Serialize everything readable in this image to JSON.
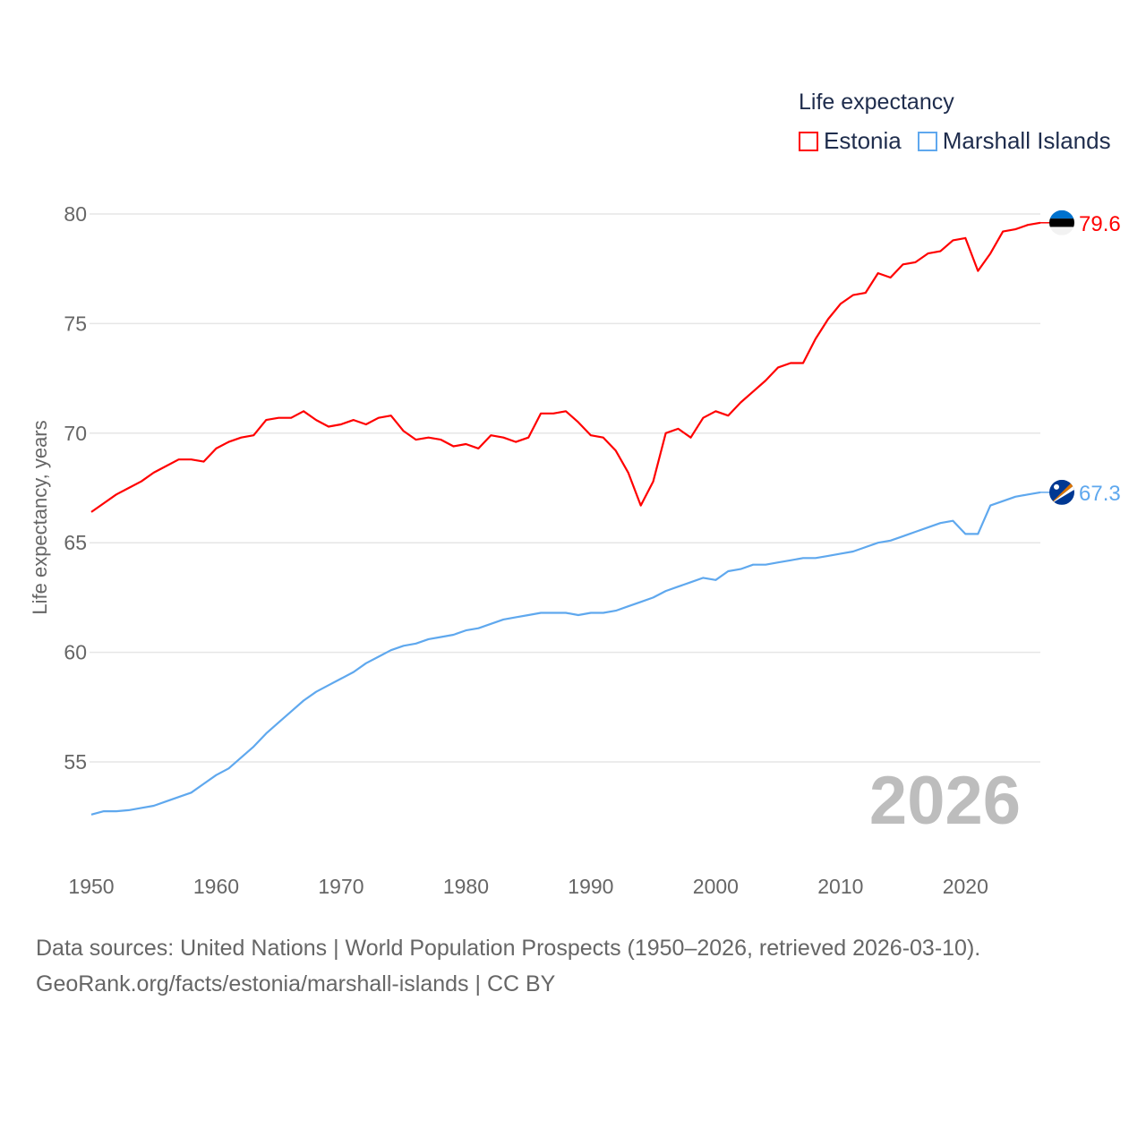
{
  "chart_data": {
    "type": "line",
    "title": "Life expectancy",
    "xlabel": "",
    "ylabel": "Life expectancy, years",
    "xlim": [
      1950,
      2026
    ],
    "ylim": [
      52.5,
      80
    ],
    "grid": true,
    "legend_position": "top-right",
    "x_ticks": [
      "1950",
      "1960",
      "1970",
      "1980",
      "1990",
      "2000",
      "2010",
      "2020"
    ],
    "y_ticks": [
      "55",
      "60",
      "65",
      "70",
      "75",
      "80"
    ],
    "watermark_year": "2026",
    "x": [
      1950,
      1951,
      1952,
      1953,
      1954,
      1955,
      1956,
      1957,
      1958,
      1959,
      1960,
      1961,
      1962,
      1963,
      1964,
      1965,
      1966,
      1967,
      1968,
      1969,
      1970,
      1971,
      1972,
      1973,
      1974,
      1975,
      1976,
      1977,
      1978,
      1979,
      1980,
      1981,
      1982,
      1983,
      1984,
      1985,
      1986,
      1987,
      1988,
      1989,
      1990,
      1991,
      1992,
      1993,
      1994,
      1995,
      1996,
      1997,
      1998,
      1999,
      2000,
      2001,
      2002,
      2003,
      2004,
      2005,
      2006,
      2007,
      2008,
      2009,
      2010,
      2011,
      2012,
      2013,
      2014,
      2015,
      2016,
      2017,
      2018,
      2019,
      2020,
      2021,
      2022,
      2023,
      2024,
      2025,
      2026
    ],
    "series": [
      {
        "name": "Estonia",
        "color": "#ff0000",
        "end_label": "79.6",
        "flag": "estonia-flag",
        "values": [
          66.4,
          66.8,
          67.2,
          67.5,
          67.8,
          68.2,
          68.5,
          68.8,
          68.8,
          68.7,
          69.3,
          69.6,
          69.8,
          69.9,
          70.6,
          70.7,
          70.7,
          71.0,
          70.6,
          70.3,
          70.4,
          70.6,
          70.4,
          70.7,
          70.8,
          70.1,
          69.7,
          69.8,
          69.7,
          69.4,
          69.5,
          69.3,
          69.9,
          69.8,
          69.6,
          69.8,
          70.9,
          70.9,
          71.0,
          70.5,
          69.9,
          69.8,
          69.2,
          68.2,
          66.7,
          67.8,
          70.0,
          70.2,
          69.8,
          70.7,
          71.0,
          70.8,
          71.4,
          71.9,
          72.4,
          73.0,
          73.2,
          73.2,
          74.3,
          75.2,
          75.9,
          76.3,
          76.4,
          77.3,
          77.1,
          77.7,
          77.8,
          78.2,
          78.3,
          78.8,
          78.9,
          77.4,
          78.2,
          79.2,
          79.3,
          79.5,
          79.6
        ]
      },
      {
        "name": "Marshall Islands",
        "color": "#5fa8ee",
        "end_label": "67.3",
        "flag": "marshall-islands-flag",
        "values": [
          52.6,
          52.75,
          52.75,
          52.8,
          52.9,
          53.0,
          53.2,
          53.4,
          53.6,
          54.0,
          54.4,
          54.7,
          55.2,
          55.7,
          56.3,
          56.8,
          57.3,
          57.8,
          58.2,
          58.5,
          58.8,
          59.1,
          59.5,
          59.8,
          60.1,
          60.3,
          60.4,
          60.6,
          60.7,
          60.8,
          61.0,
          61.1,
          61.3,
          61.5,
          61.6,
          61.7,
          61.8,
          61.8,
          61.8,
          61.7,
          61.8,
          61.8,
          61.9,
          62.1,
          62.3,
          62.5,
          62.8,
          63.0,
          63.2,
          63.4,
          63.3,
          63.7,
          63.8,
          64.0,
          64.0,
          64.1,
          64.2,
          64.3,
          64.3,
          64.4,
          64.5,
          64.6,
          64.8,
          65.0,
          65.1,
          65.3,
          65.5,
          65.7,
          65.9,
          66.0,
          65.4,
          65.4,
          66.7,
          66.9,
          67.1,
          67.2,
          67.3
        ]
      }
    ]
  },
  "footer": {
    "line1": "Data sources: United Nations | World Population Prospects (1950–2026, retrieved 2026-03-10).",
    "line2": "GeoRank.org/facts/estonia/marshall-islands | CC BY"
  }
}
